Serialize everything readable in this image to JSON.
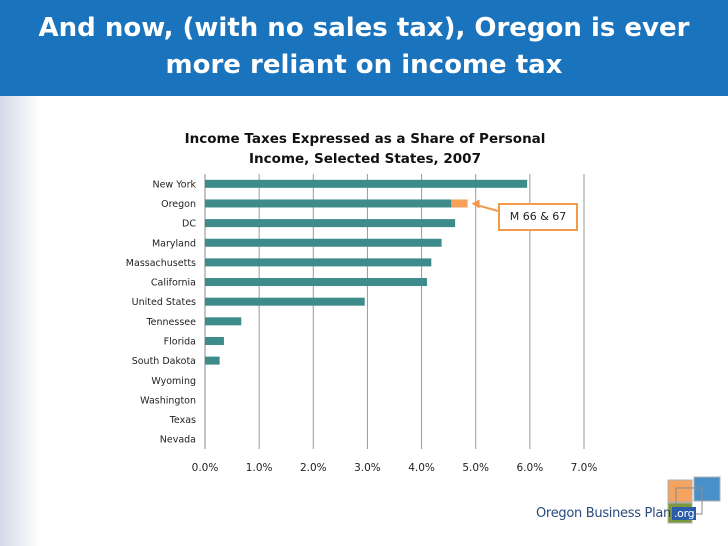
{
  "header": {
    "title_line1": "And now, (with no sales tax), Oregon is ever",
    "title_line2": "more reliant on income tax"
  },
  "callout": {
    "label": "M 66 & 67"
  },
  "logo": {
    "text": "Oregon Business Plan",
    "suffix": ".org"
  },
  "colors": {
    "header": "#1a73bd",
    "bar": "#3d8b8b",
    "oregon_extra": "#f7a15a",
    "callout_border": "#f29a4a"
  },
  "chart_data": {
    "type": "bar",
    "orientation": "horizontal",
    "title": "Income Taxes Expressed as a Share of Personal Income, Selected States, 2007",
    "title_line1": "Income Taxes Expressed as a Share of Personal",
    "title_line2": "Income, Selected States, 2007",
    "categories": [
      "New York",
      "Oregon",
      "DC",
      "Maryland",
      "Massachusetts",
      "California",
      "United States",
      "Tennessee",
      "Florida",
      "South Dakota",
      "Wyoming",
      "Washington",
      "Texas",
      "Nevada"
    ],
    "series": [
      {
        "values": [
          5.95,
          4.55,
          4.62,
          4.37,
          4.18,
          4.1,
          2.95,
          0.67,
          0.35,
          0.27,
          0,
          0,
          0,
          0
        ]
      },
      {
        "values": [
          0,
          0.3,
          0,
          0,
          0,
          0,
          0,
          0,
          0,
          0,
          0,
          0,
          0,
          0
        ]
      }
    ],
    "xlim": [
      0,
      7
    ],
    "xticks": [
      "0.0%",
      "1.0%",
      "2.0%",
      "3.0%",
      "4.0%",
      "5.0%",
      "6.0%",
      "7.0%"
    ],
    "grid": true
  }
}
